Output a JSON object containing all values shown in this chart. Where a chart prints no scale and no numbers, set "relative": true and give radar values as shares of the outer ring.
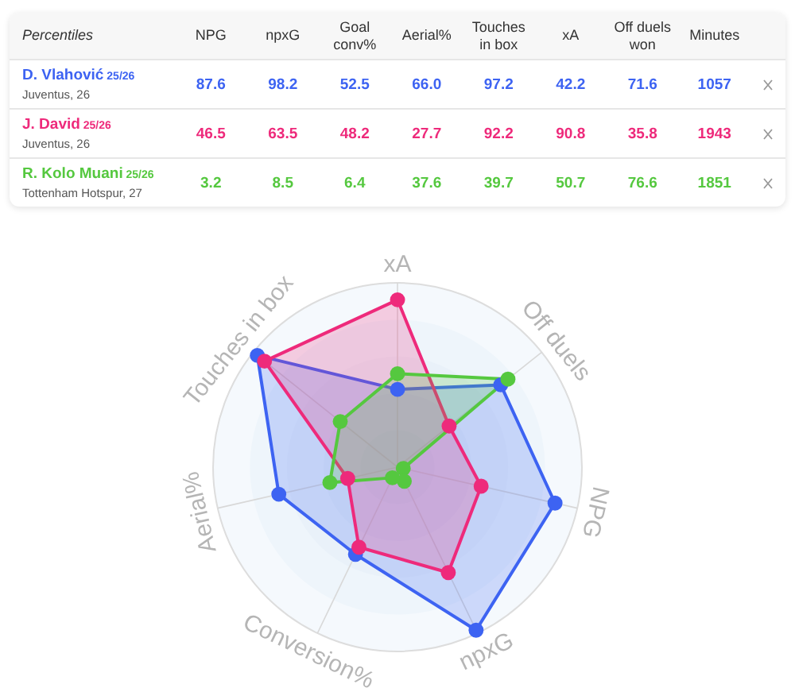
{
  "chart_data": [
    {
      "type": "other",
      "legend_title": "Percentiles",
      "categories": [
        "NPG",
        "npxG",
        "Goal conv%",
        "Aerial%",
        "Touches in box",
        "xA",
        "Off duels won",
        "Minutes"
      ],
      "annotations": [
        "25/26",
        "Juventus, 26",
        "25/26",
        "Juventus, 26",
        "25/26",
        "Tottenham Hotspur, 27"
      ],
      "series": [
        {
          "name": "D. Vlahović",
          "color": "#3d63f2",
          "values": [
            87.6,
            98.2,
            52.5,
            66.0,
            97.2,
            42.2,
            71.6,
            1057
          ],
          "value_labels": [
            "87.6",
            "98.2",
            "52.5",
            "66.0",
            "97.2",
            "42.2",
            "71.6",
            "1057"
          ]
        },
        {
          "name": "J. David",
          "color": "#ee2a7b",
          "values": [
            46.5,
            63.5,
            48.2,
            27.7,
            92.2,
            90.8,
            35.8,
            1943
          ],
          "value_labels": [
            "46.5",
            "63.5",
            "48.2",
            "27.7",
            "92.2",
            "90.8",
            "35.8",
            "1943"
          ]
        },
        {
          "name": "R. Kolo Muani",
          "color": "#55c83f",
          "values": [
            3.2,
            8.5,
            6.4,
            37.6,
            39.7,
            50.7,
            76.6,
            1851
          ],
          "value_labels": [
            "3.2",
            "8.5",
            "6.4",
            "37.6",
            "39.7",
            "50.7",
            "76.6",
            "1851"
          ]
        }
      ]
    },
    {
      "type": "radar",
      "relative": true,
      "grid": true,
      "marker": "circle",
      "categories": [
        "xA",
        "Off duels",
        "NPG",
        "npxG",
        "Conversion%",
        "Aerial%",
        "Touches in box"
      ],
      "series": [
        {
          "color": "#3d63f2",
          "values": [
            0.422,
            0.716,
            0.876,
            0.982,
            0.525,
            0.66,
            0.972
          ]
        },
        {
          "color": "#ee2a7b",
          "values": [
            0.908,
            0.358,
            0.465,
            0.635,
            0.482,
            0.277,
            0.922
          ]
        },
        {
          "color": "#55c83f",
          "values": [
            0.507,
            0.766,
            0.032,
            0.085,
            0.064,
            0.376,
            0.397
          ]
        }
      ]
    }
  ]
}
